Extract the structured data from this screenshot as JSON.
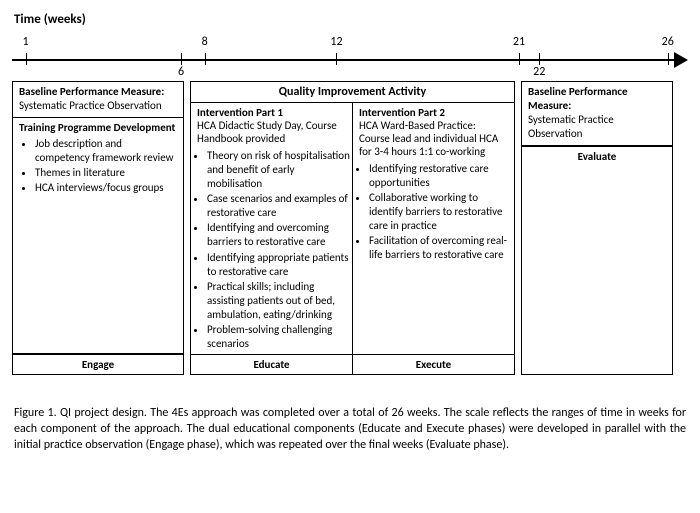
{
  "timeline": {
    "label": "Time (weeks)",
    "length_weeks": 26,
    "ticks": [
      {
        "week": 1,
        "pos_pct": 2.0,
        "label_top": "1",
        "label_bottom": null
      },
      {
        "week": 6,
        "pos_pct": 25.0,
        "label_top": null,
        "label_bottom": "6"
      },
      {
        "week": 8,
        "pos_pct": 28.5,
        "label_top": "8",
        "label_bottom": null
      },
      {
        "week": 12,
        "pos_pct": 48.0,
        "label_top": "12",
        "label_bottom": null
      },
      {
        "week": 21,
        "pos_pct": 75.0,
        "label_top": "21",
        "label_bottom": null
      },
      {
        "week": 22,
        "pos_pct": 78.0,
        "label_top": null,
        "label_bottom": "22"
      },
      {
        "week": 26,
        "pos_pct": 97.0,
        "label_top": "26",
        "label_bottom": null
      }
    ],
    "axis_color": "#000000",
    "background_color": "#ffffff"
  },
  "left": {
    "box1_header": "Baseline Performance Measure:",
    "box1_text": "Systematic Practice Observation",
    "box2_header": "Training Programme Development",
    "box2_bullets": [
      "Job description and competency framework review",
      "Themes in literature",
      "HCA interviews/focus groups"
    ],
    "phase": "Engage"
  },
  "mid": {
    "header": "Quality Improvement Activity",
    "part1": {
      "title": "Intervention Part 1",
      "desc": "HCA Didactic Study Day, Course Handbook provided",
      "bullets": [
        "Theory on risk of hospitalisation and benefit of early mobilisation",
        "Case scenarios and examples of restorative care",
        "Identifying and overcoming barriers to restorative care",
        "Identifying appropriate patients to restorative care",
        "Practical skills; including assisting patients out of bed, ambulation, eating/drinking",
        "Problem-solving challenging scenarios"
      ],
      "phase": "Educate"
    },
    "part2": {
      "title": "Intervention Part 2",
      "desc": "HCA Ward-Based Practice: Course lead and individual HCA for 3-4 hours 1:1 co-working",
      "bullets": [
        "Identifying restorative care opportunities",
        "Collaborative working to identify barriers to restorative care in practice",
        "Facilitation of overcoming real-life barriers to restorative care"
      ],
      "phase": "Execute"
    }
  },
  "right": {
    "box1_header": "Baseline Performance Measure:",
    "box1_text": "Systematic Practice Observation",
    "phase": "Evaluate"
  },
  "caption": "Figure 1. QI project design. The 4Es approach was completed over a total of 26 weeks. The scale reflects the ranges of time in weeks for each component of the approach. The dual educational components (Educate and Execute phases) were developed in parallel with the initial practice observation (Engage phase), which was repeated over the final weeks (Evaluate phase)."
}
